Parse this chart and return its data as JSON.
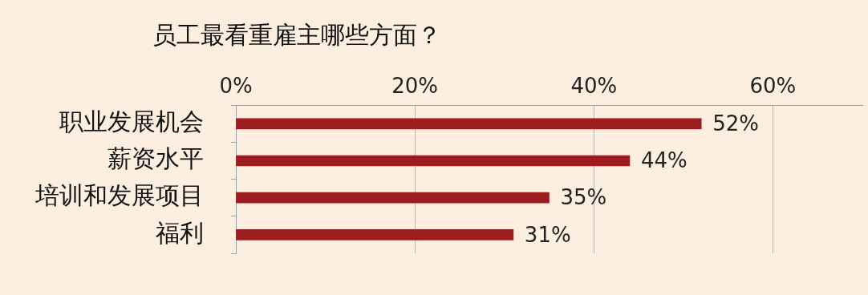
{
  "chart_data": {
    "type": "bar",
    "orientation": "horizontal",
    "title": "员工最看重雇主哪些方面？",
    "categories": [
      "职业发展机会",
      "薪资水平",
      "培训和发展项目",
      "福利"
    ],
    "values": [
      52,
      44,
      35,
      31
    ],
    "color": "#9e1b1e",
    "value_labels": [
      "52%",
      "44%",
      "35%",
      "31%"
    ],
    "xlim": [
      0,
      70
    ],
    "xticks": [
      {
        "value": 0,
        "label": "0%"
      },
      {
        "value": 20,
        "label": "20%"
      },
      {
        "value": 40,
        "label": "40%"
      },
      {
        "value": 60,
        "label": "60%"
      }
    ],
    "grid": "x",
    "legend": false
  }
}
